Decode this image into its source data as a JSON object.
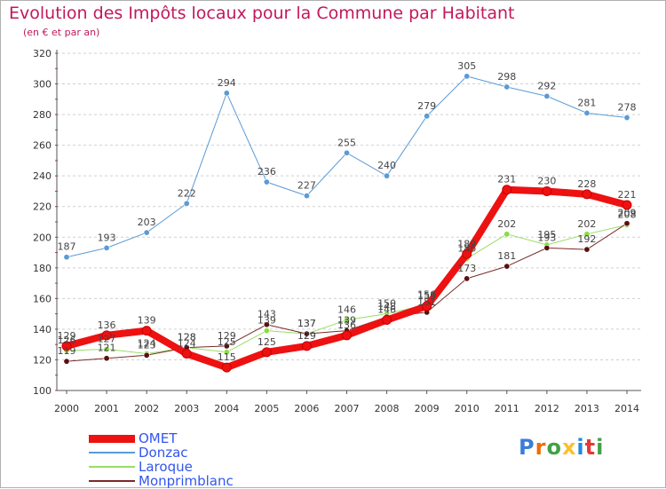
{
  "header": {
    "title": "Evolution des Impôts locaux pour la Commune par Habitant",
    "subtitle": "(en € et par an)"
  },
  "brand": {
    "letters": [
      "P",
      "r",
      "o",
      "x",
      "i",
      "t",
      "i"
    ],
    "colors": [
      "#3b7dd8",
      "#ef6c00",
      "#43a047",
      "#fbc02d",
      "#1e88e5",
      "#e53935",
      "#43a047"
    ]
  },
  "chart_data": {
    "type": "line",
    "x": [
      2000,
      2001,
      2002,
      2003,
      2004,
      2005,
      2006,
      2007,
      2008,
      2009,
      2010,
      2011,
      2012,
      2013,
      2014
    ],
    "ylim": [
      100,
      320
    ],
    "yticks": [
      100,
      120,
      140,
      160,
      180,
      200,
      220,
      240,
      260,
      280,
      300,
      320
    ],
    "grid": "horizontal dashed",
    "legend_placement": "bottom-left",
    "series": [
      {
        "name": "OMET",
        "color": "#ee1111",
        "width": 8,
        "values": [
          129,
          136,
          139,
          124,
          115,
          125,
          129,
          136,
          146,
          155,
          189,
          231,
          230,
          228,
          221
        ],
        "labels": [
          "129",
          "136",
          "139",
          "124",
          "115",
          "125",
          "129",
          "136",
          "146",
          "155",
          "189",
          "231",
          "230",
          "228",
          "221"
        ]
      },
      {
        "name": "Donzac",
        "color": "#5b9bd5",
        "width": 1,
        "values": [
          187,
          193,
          203,
          222,
          294,
          236,
          227,
          255,
          240,
          279,
          305,
          298,
          292,
          281,
          278
        ],
        "labels": [
          "187",
          "193",
          "203",
          "222",
          "294",
          "236",
          "227",
          "255",
          "240",
          "279",
          "305",
          "298",
          "292",
          "281",
          "278"
        ]
      },
      {
        "name": "Laroque",
        "color": "#99dd66",
        "width": 1,
        "values": [
          126,
          127,
          124,
          128,
          125,
          139,
          137,
          146,
          150,
          156,
          186,
          202,
          195,
          202,
          208
        ],
        "labels": [
          "126",
          "127",
          "124",
          "128",
          "125",
          "139",
          "137",
          "146",
          "150",
          "156",
          "186",
          "202",
          "195",
          "202",
          "208"
        ]
      },
      {
        "name": "Monprimblanc",
        "color": "#7a2a2a",
        "width": 1,
        "values": [
          119,
          121,
          123,
          128,
          129,
          143,
          137,
          139,
          148,
          151,
          173,
          181,
          193,
          192,
          209
        ],
        "labels": [
          "119",
          "121",
          "123",
          "128",
          "129",
          "143",
          "137",
          "139",
          "148",
          "151",
          "173",
          "181",
          "193",
          "192",
          "209"
        ]
      }
    ]
  }
}
